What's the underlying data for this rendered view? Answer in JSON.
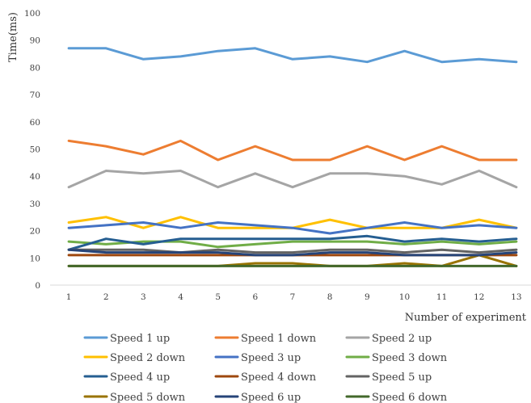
{
  "chart_data": {
    "type": "line",
    "title": "",
    "xlabel": "Number of experiment",
    "ylabel": "Time(ms)",
    "ylim": [
      0,
      100
    ],
    "yticks": [
      0,
      10,
      20,
      30,
      40,
      50,
      60,
      70,
      80,
      90,
      100
    ],
    "x": [
      1,
      2,
      3,
      4,
      5,
      6,
      7,
      8,
      9,
      10,
      11,
      12,
      13
    ],
    "grid": false,
    "legend_position": "bottom",
    "series": [
      {
        "name": "Speed 1 up",
        "color": "#5B9BD5",
        "values": [
          87,
          87,
          83,
          84,
          86,
          87,
          83,
          84,
          82,
          86,
          82,
          83,
          82
        ]
      },
      {
        "name": "Speed 1 down",
        "color": "#ED7D31",
        "values": [
          53,
          51,
          48,
          53,
          46,
          51,
          46,
          46,
          51,
          46,
          51,
          46,
          46
        ]
      },
      {
        "name": "Speed 2 up",
        "color": "#A5A5A5",
        "values": [
          36,
          42,
          41,
          42,
          36,
          41,
          36,
          41,
          41,
          40,
          37,
          42,
          36
        ]
      },
      {
        "name": "Speed 2 down",
        "color": "#FFC000",
        "values": [
          23,
          25,
          21,
          25,
          21,
          21,
          21,
          24,
          21,
          21,
          21,
          24,
          21
        ]
      },
      {
        "name": "Speed 3 up",
        "color": "#4472C4",
        "values": [
          21,
          22,
          23,
          21,
          23,
          22,
          21,
          19,
          21,
          23,
          21,
          22,
          21
        ]
      },
      {
        "name": "Speed 3 down",
        "color": "#70AD47",
        "values": [
          16,
          15,
          16,
          16,
          14,
          15,
          16,
          16,
          16,
          15,
          16,
          15,
          16
        ]
      },
      {
        "name": "Speed 4 up",
        "color": "#255E91",
        "values": [
          13,
          17,
          15,
          17,
          17,
          17,
          17,
          17,
          18,
          16,
          17,
          16,
          17
        ]
      },
      {
        "name": "Speed 4 down",
        "color": "#9E480E",
        "values": [
          11,
          11,
          11,
          11,
          11,
          11,
          11,
          11,
          11,
          11,
          11,
          11,
          11
        ]
      },
      {
        "name": "Speed 5 up",
        "color": "#636363",
        "values": [
          13,
          13,
          13,
          12,
          13,
          12,
          12,
          13,
          13,
          12,
          13,
          12,
          13
        ]
      },
      {
        "name": "Speed 5 down",
        "color": "#997300",
        "values": [
          7,
          7,
          7,
          7,
          7,
          8,
          8,
          7,
          7,
          8,
          7,
          11,
          7
        ]
      },
      {
        "name": "Speed 6 up",
        "color": "#264478",
        "values": [
          13,
          12,
          12,
          12,
          12,
          11,
          11,
          12,
          12,
          11,
          11,
          11,
          12
        ]
      },
      {
        "name": "Speed 6 down",
        "color": "#43682B",
        "values": [
          7,
          7,
          7,
          7,
          7,
          7,
          7,
          7,
          7,
          7,
          7,
          7,
          7
        ]
      }
    ]
  }
}
